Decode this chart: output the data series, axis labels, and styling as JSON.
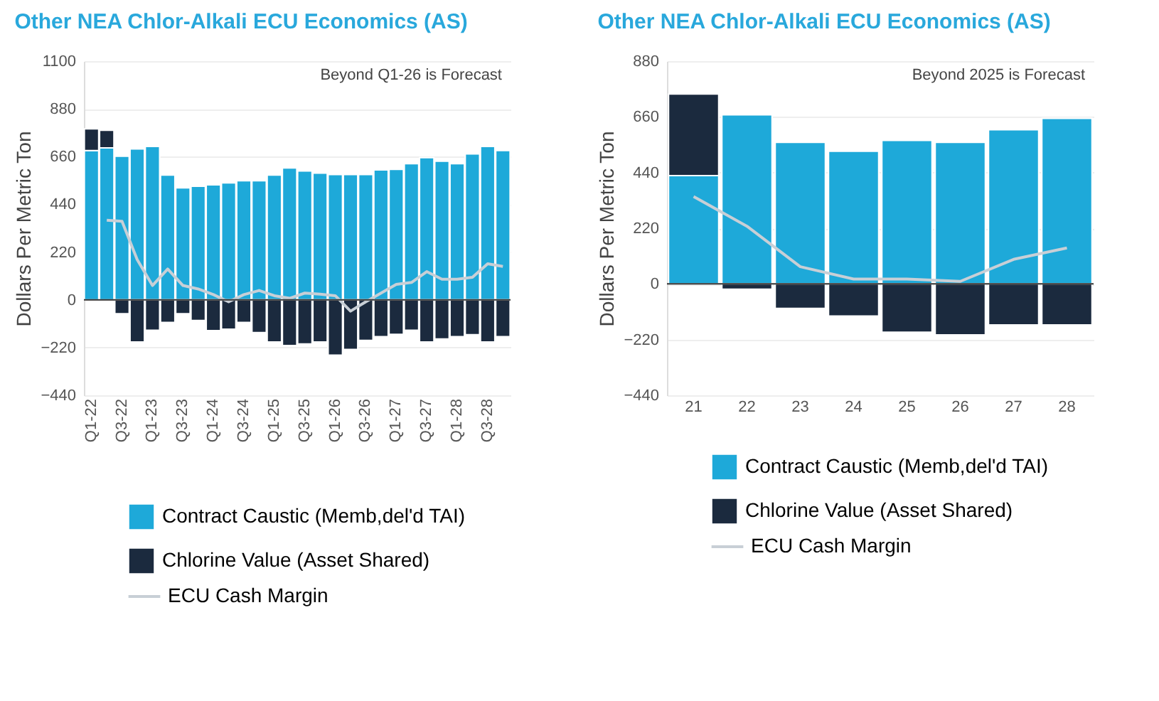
{
  "chart_data": [
    {
      "type": "bar",
      "title": "Other NEA Chlor-Alkali ECU Economics (AS)",
      "ylabel": "Dollars Per Metric Ton",
      "stacked": true,
      "grid": "y",
      "legend": "bottom",
      "categories": [
        "Q1-22",
        null,
        "Q3-22",
        null,
        "Q1-23",
        null,
        "Q3-23",
        null,
        "Q1-24",
        null,
        "Q3-24",
        null,
        "Q1-25",
        null,
        "Q3-25",
        null,
        "Q1-26",
        null,
        "Q3-26",
        null,
        "Q1-27",
        null,
        "Q3-27",
        null,
        "Q1-28",
        null,
        "Q3-28",
        null
      ],
      "ylim": [
        -440,
        1100
      ],
      "yticks": [
        -440,
        -220,
        0,
        220,
        440,
        660,
        880,
        1100
      ],
      "annotations": [
        "Beyond Q1-26 is Forecast"
      ],
      "series": [
        {
          "name": "Contract Caustic (Memb,del'd TAI)",
          "color": "#1ea9d9",
          "values": [
            688,
            700,
            662,
            695,
            707,
            575,
            516,
            523,
            530,
            539,
            549,
            549,
            575,
            608,
            594,
            584,
            577,
            577,
            577,
            599,
            601,
            627,
            655,
            639,
            627,
            672,
            707,
            688
          ]
        },
        {
          "name": "Chlorine Value (Asset Shared)",
          "color": "#1b2a3e",
          "values": [
            100,
            81,
            -64,
            -194,
            -140,
            -104,
            -64,
            -95,
            -142,
            -135,
            -104,
            -151,
            -194,
            -211,
            -203,
            -194,
            -255,
            -229,
            -187,
            -170,
            -159,
            -140,
            -194,
            -180,
            -170,
            -161,
            -194,
            -170
          ]
        },
        {
          "name": "ECU Cash Margin",
          "type": "line",
          "color": "#c8cfd6",
          "values": [
            null,
            367,
            362,
            185,
            66,
            142,
            66,
            50,
            24,
            -9,
            24,
            43,
            19,
            7,
            31,
            26,
            19,
            -52,
            -9,
            31,
            71,
            80,
            130,
            95,
            95,
            104,
            166,
            154
          ]
        }
      ]
    },
    {
      "type": "bar",
      "title": "Other NEA Chlor-Alkali ECU Economics (AS)",
      "ylabel": "Dollars Per Metric Ton",
      "stacked": true,
      "grid": "y",
      "legend": "bottom",
      "categories": [
        "21",
        "22",
        "23",
        "24",
        "25",
        "26",
        "27",
        "28"
      ],
      "ylim": [
        -440,
        880
      ],
      "yticks": [
        -440,
        -220,
        0,
        220,
        440,
        660,
        880
      ],
      "annotations": [
        "Beyond 2025 is Forecast"
      ],
      "series": [
        {
          "name": "Contract Caustic (Memb,del'd TAI)",
          "color": "#1ea9d9",
          "values": [
            428,
            668,
            559,
            524,
            567,
            559,
            609,
            654
          ]
        },
        {
          "name": "Chlorine Value (Asset Shared)",
          "color": "#1b2a3e",
          "values": [
            322,
            -21,
            -97,
            -127,
            -191,
            -201,
            -162,
            -162
          ]
        },
        {
          "name": "ECU Cash Margin",
          "type": "line",
          "color": "#c8cfd6",
          "values": [
            345,
            228,
            68,
            19,
            19,
            10,
            97,
            142
          ]
        }
      ]
    }
  ]
}
